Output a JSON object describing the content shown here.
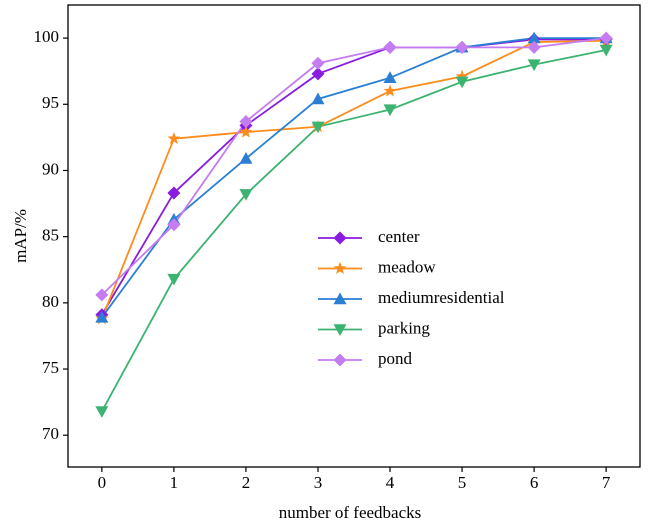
{
  "chart_data": {
    "type": "line",
    "x_label": "number of feedbacks",
    "y_label": "mAP/%",
    "x": [
      0,
      1,
      2,
      3,
      4,
      5,
      6,
      7
    ],
    "xlim": [
      -0.47,
      7.47
    ],
    "xticks": [
      0,
      1,
      2,
      3,
      4,
      5,
      6,
      7
    ],
    "ylim": [
      67.6,
      102.5
    ],
    "yticks": [
      70,
      75,
      80,
      85,
      90,
      95,
      100
    ],
    "grid": false,
    "legend_position": "center",
    "series": [
      {
        "name": "center",
        "color": "#8a1be0",
        "marker": "diamond",
        "values": [
          79.1,
          88.3,
          93.4,
          97.3,
          99.3,
          99.3,
          99.9,
          99.9
        ]
      },
      {
        "name": "meadow",
        "color": "#ff8c1a",
        "marker": "star",
        "values": [
          78.8,
          92.4,
          92.9,
          93.3,
          96.0,
          97.1,
          99.7,
          99.8
        ]
      },
      {
        "name": "mediumresidential",
        "color": "#2a7fd4",
        "marker": "triangle-up",
        "values": [
          78.9,
          86.3,
          90.9,
          95.4,
          97.0,
          99.3,
          100.0,
          100.0
        ]
      },
      {
        "name": "parking",
        "color": "#3cb371",
        "marker": "triangle-down",
        "values": [
          71.8,
          81.8,
          88.2,
          93.3,
          94.6,
          96.7,
          98.0,
          99.1
        ]
      },
      {
        "name": "pond",
        "color": "#c47cf0",
        "marker": "diamond",
        "values": [
          80.6,
          85.9,
          93.7,
          98.1,
          99.3,
          99.3,
          99.3,
          100.0
        ]
      }
    ]
  }
}
